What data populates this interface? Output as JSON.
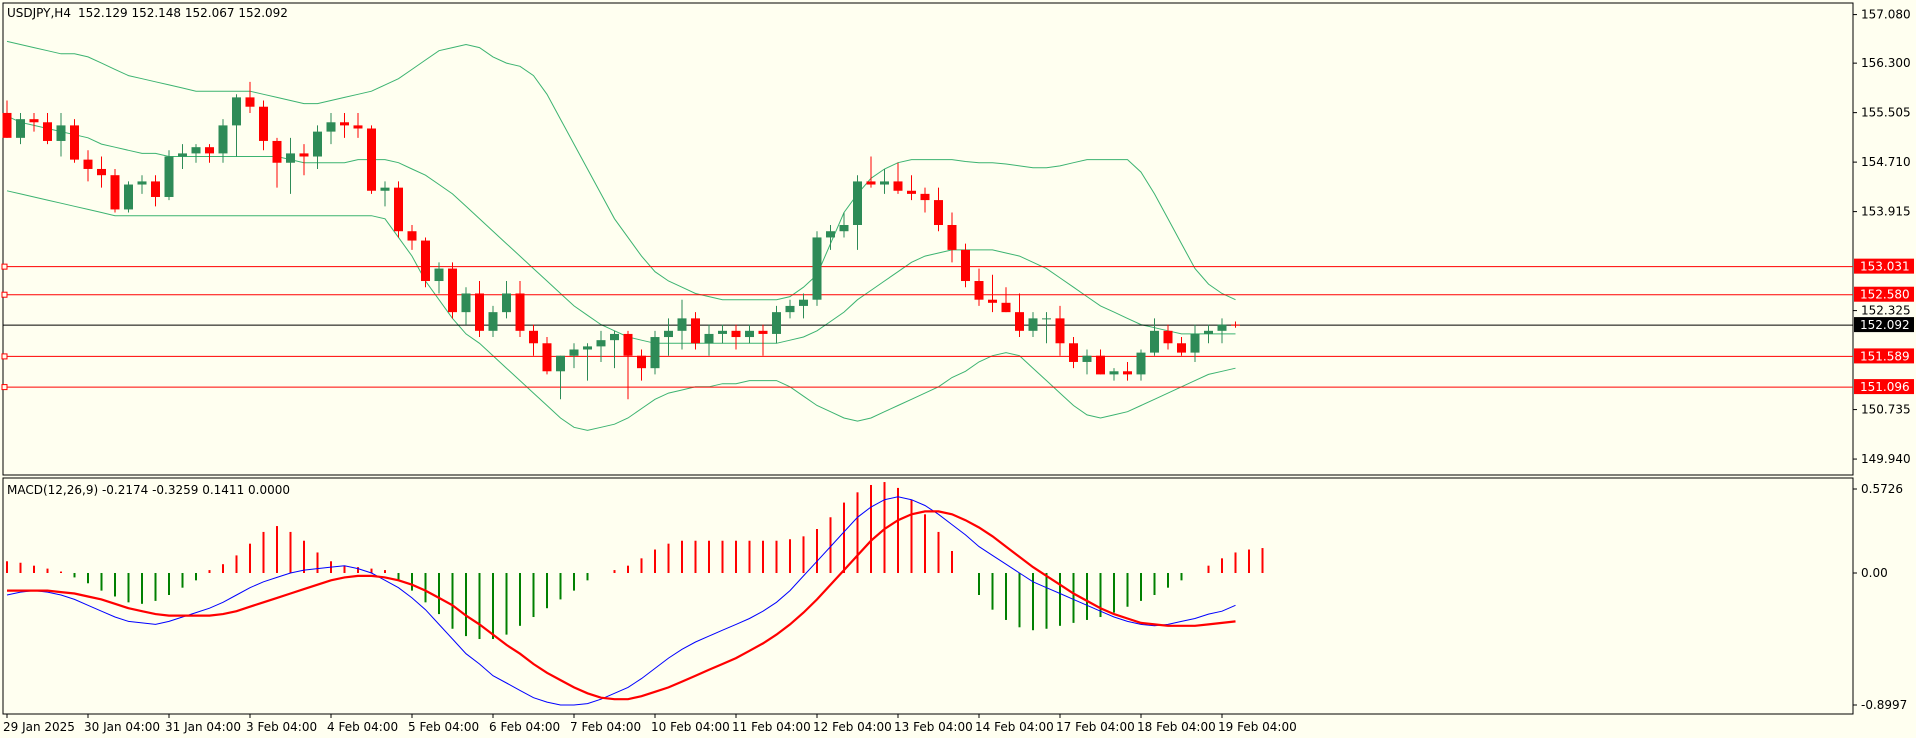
{
  "header": {
    "symbol": "USDJPY,H4",
    "ohlc": "152.129 152.148 152.067 152.092"
  },
  "macd_header": {
    "label": "MACD(12,26,9) -0.2174 -0.3259 0.1411 0.0000"
  },
  "colors": {
    "background": "#fffff0",
    "bull_candle": "#2e8b57",
    "bear_candle": "#ff0000",
    "bollinger": "#3cb371",
    "level_line": "#ff0000",
    "current_price_line": "#000000",
    "macd_line": "#0000ff",
    "signal_line": "#ff0000",
    "hist_positive": "#ff0000",
    "hist_negative": "#008000"
  },
  "chart_data": [
    {
      "type": "candlestick",
      "title": "USDJPY,H4",
      "ylim": [
        149.7,
        157.25
      ],
      "y_ticks": [
        "157.080",
        "156.300",
        "155.505",
        "154.710",
        "153.915",
        "152.325",
        "150.735",
        "149.940"
      ],
      "y_ticks_values": [
        157.08,
        156.3,
        155.505,
        154.71,
        153.915,
        152.325,
        150.735,
        149.94
      ],
      "x_tick_labels": [
        "29 Jan 2025",
        "30 Jan 04:00",
        "31 Jan 04:00",
        "3 Feb 04:00",
        "4 Feb 04:00",
        "5 Feb 04:00",
        "6 Feb 04:00",
        "7 Feb 04:00",
        "10 Feb 04:00",
        "11 Feb 04:00",
        "12 Feb 04:00",
        "13 Feb 04:00",
        "14 Feb 04:00",
        "17 Feb 04:00",
        "18 Feb 04:00",
        "19 Feb 04:00"
      ],
      "x_tick_bar_index": [
        0,
        6,
        12,
        18,
        24,
        30,
        36,
        42,
        48,
        54,
        60,
        66,
        72,
        78,
        84,
        90
      ],
      "price_levels": [
        {
          "label": "153.031",
          "value": 153.031
        },
        {
          "label": "152.580",
          "value": 152.58
        },
        {
          "label": "151.589",
          "value": 151.589
        },
        {
          "label": "151.096",
          "value": 151.096
        }
      ],
      "current_price": {
        "label": "152.092",
        "value": 152.092
      },
      "candles": [
        [
          155.5,
          155.7,
          155.1,
          155.1
        ],
        [
          155.1,
          155.5,
          155.0,
          155.4
        ],
        [
          155.4,
          155.5,
          155.2,
          155.35
        ],
        [
          155.35,
          155.5,
          155.0,
          155.05
        ],
        [
          155.05,
          155.5,
          154.8,
          155.3
        ],
        [
          155.3,
          155.4,
          154.7,
          154.75
        ],
        [
          154.75,
          154.9,
          154.4,
          154.6
        ],
        [
          154.6,
          154.8,
          154.3,
          154.5
        ],
        [
          154.5,
          154.6,
          153.9,
          153.95
        ],
        [
          153.95,
          154.4,
          153.9,
          154.35
        ],
        [
          154.35,
          154.5,
          154.2,
          154.4
        ],
        [
          154.4,
          154.5,
          154.0,
          154.15
        ],
        [
          154.15,
          154.9,
          154.1,
          154.8
        ],
        [
          154.8,
          155.0,
          154.6,
          154.85
        ],
        [
          154.85,
          155.0,
          154.7,
          154.95
        ],
        [
          154.95,
          155.0,
          154.7,
          154.85
        ],
        [
          154.85,
          155.4,
          154.7,
          155.3
        ],
        [
          155.3,
          155.8,
          154.8,
          155.75
        ],
        [
          155.75,
          156.0,
          155.5,
          155.6
        ],
        [
          155.6,
          155.7,
          154.9,
          155.05
        ],
        [
          155.05,
          155.1,
          154.3,
          154.7
        ],
        [
          154.7,
          155.1,
          154.2,
          154.85
        ],
        [
          154.85,
          155.0,
          154.5,
          154.8
        ],
        [
          154.8,
          155.3,
          154.6,
          155.2
        ],
        [
          155.2,
          155.5,
          155.0,
          155.35
        ],
        [
          155.35,
          155.5,
          155.1,
          155.3
        ],
        [
          155.3,
          155.5,
          155.1,
          155.25
        ],
        [
          155.25,
          155.3,
          154.2,
          154.25
        ],
        [
          154.25,
          154.4,
          154.0,
          154.3
        ],
        [
          154.3,
          154.4,
          153.5,
          153.6
        ],
        [
          153.6,
          153.7,
          153.3,
          153.45
        ],
        [
          153.45,
          153.5,
          152.7,
          152.8
        ],
        [
          152.8,
          153.1,
          152.6,
          153.0
        ],
        [
          153.0,
          153.1,
          152.2,
          152.3
        ],
        [
          152.3,
          152.7,
          152.1,
          152.6
        ],
        [
          152.6,
          152.8,
          151.9,
          152.0
        ],
        [
          152.0,
          152.4,
          151.9,
          152.3
        ],
        [
          152.3,
          152.8,
          152.2,
          152.6
        ],
        [
          152.6,
          152.8,
          151.9,
          152.0
        ],
        [
          152.0,
          152.1,
          151.6,
          151.8
        ],
        [
          151.8,
          151.9,
          151.3,
          151.35
        ],
        [
          151.35,
          151.6,
          150.9,
          151.6
        ],
        [
          151.6,
          151.8,
          151.4,
          151.7
        ],
        [
          151.7,
          151.8,
          151.2,
          151.75
        ],
        [
          151.75,
          152.0,
          151.5,
          151.85
        ],
        [
          151.85,
          152.0,
          151.4,
          151.95
        ],
        [
          151.95,
          152.0,
          150.9,
          151.6
        ],
        [
          151.6,
          151.7,
          151.2,
          151.4
        ],
        [
          151.4,
          152.0,
          151.3,
          151.9
        ],
        [
          151.9,
          152.2,
          151.6,
          152.0
        ],
        [
          152.0,
          152.5,
          151.7,
          152.2
        ],
        [
          152.2,
          152.3,
          151.7,
          151.8
        ],
        [
          151.8,
          152.1,
          151.6,
          151.95
        ],
        [
          151.95,
          152.1,
          151.8,
          152.0
        ],
        [
          152.0,
          152.1,
          151.7,
          151.9
        ],
        [
          151.9,
          152.1,
          151.8,
          152.0
        ],
        [
          152.0,
          152.1,
          151.6,
          151.95
        ],
        [
          151.95,
          152.4,
          151.8,
          152.3
        ],
        [
          152.3,
          152.5,
          152.2,
          152.4
        ],
        [
          152.4,
          152.6,
          152.2,
          152.5
        ],
        [
          152.5,
          153.6,
          152.4,
          153.5
        ],
        [
          153.5,
          153.7,
          153.3,
          153.6
        ],
        [
          153.6,
          153.9,
          153.5,
          153.7
        ],
        [
          153.7,
          154.5,
          153.3,
          154.4
        ],
        [
          154.4,
          154.8,
          154.3,
          154.35
        ],
        [
          154.35,
          154.6,
          154.2,
          154.4
        ],
        [
          154.4,
          154.7,
          154.2,
          154.25
        ],
        [
          154.25,
          154.5,
          154.1,
          154.2
        ],
        [
          154.2,
          154.3,
          153.9,
          154.1
        ],
        [
          154.1,
          154.3,
          153.6,
          153.7
        ],
        [
          153.7,
          153.9,
          153.1,
          153.3
        ],
        [
          153.3,
          153.4,
          152.7,
          152.8
        ],
        [
          152.8,
          153.0,
          152.4,
          152.5
        ],
        [
          152.5,
          152.9,
          152.3,
          152.45
        ],
        [
          152.45,
          152.7,
          152.3,
          152.3
        ],
        [
          152.3,
          152.6,
          151.9,
          152.0
        ],
        [
          152.0,
          152.3,
          151.9,
          152.2
        ],
        [
          152.2,
          152.3,
          151.8,
          152.2
        ],
        [
          152.2,
          152.4,
          151.6,
          151.8
        ],
        [
          151.8,
          151.9,
          151.4,
          151.5
        ],
        [
          151.5,
          151.7,
          151.3,
          151.6
        ],
        [
          151.6,
          151.7,
          151.3,
          151.3
        ],
        [
          151.3,
          151.4,
          151.2,
          151.35
        ],
        [
          151.35,
          151.5,
          151.2,
          151.3
        ],
        [
          151.3,
          151.7,
          151.2,
          151.65
        ],
        [
          151.65,
          152.2,
          151.6,
          152.0
        ],
        [
          152.0,
          152.1,
          151.7,
          151.8
        ],
        [
          151.8,
          151.9,
          151.6,
          151.65
        ],
        [
          151.65,
          152.1,
          151.5,
          151.95
        ],
        [
          151.95,
          152.1,
          151.8,
          152.0
        ],
        [
          152.0,
          152.2,
          151.8,
          152.1
        ],
        [
          152.1,
          152.15,
          152.05,
          152.09
        ]
      ],
      "bollinger_upper": [
        156.65,
        156.6,
        156.55,
        156.5,
        156.45,
        156.45,
        156.4,
        156.3,
        156.2,
        156.1,
        156.05,
        156.0,
        155.95,
        155.9,
        155.85,
        155.85,
        155.85,
        155.85,
        155.85,
        155.8,
        155.75,
        155.7,
        155.65,
        155.65,
        155.7,
        155.75,
        155.8,
        155.85,
        155.95,
        156.05,
        156.2,
        156.35,
        156.5,
        156.55,
        156.6,
        156.55,
        156.4,
        156.3,
        156.25,
        156.1,
        155.8,
        155.4,
        155.0,
        154.6,
        154.2,
        153.8,
        153.5,
        153.2,
        152.95,
        152.8,
        152.7,
        152.6,
        152.55,
        152.5,
        152.5,
        152.5,
        152.5,
        152.5,
        152.55,
        152.7,
        152.9,
        153.4,
        153.9,
        154.2,
        154.45,
        154.6,
        154.7,
        154.75,
        154.75,
        154.75,
        154.75,
        154.72,
        154.7,
        154.7,
        154.68,
        154.65,
        154.62,
        154.62,
        154.65,
        154.7,
        154.75,
        154.75,
        154.75,
        154.75,
        154.55,
        154.2,
        153.8,
        153.4,
        153.0,
        152.75,
        152.6,
        152.5
      ],
      "bollinger_middle": [
        155.45,
        155.35,
        155.3,
        155.25,
        155.2,
        155.15,
        155.1,
        155.0,
        154.95,
        154.9,
        154.85,
        154.85,
        154.8,
        154.8,
        154.8,
        154.8,
        154.8,
        154.8,
        154.8,
        154.8,
        154.8,
        154.75,
        154.7,
        154.7,
        154.7,
        154.7,
        154.75,
        154.75,
        154.75,
        154.7,
        154.6,
        154.5,
        154.35,
        154.2,
        154.0,
        153.8,
        153.6,
        153.4,
        153.2,
        153.0,
        152.8,
        152.6,
        152.4,
        152.25,
        152.1,
        152.0,
        151.9,
        151.85,
        151.8,
        151.8,
        151.8,
        151.8,
        151.8,
        151.8,
        151.8,
        151.8,
        151.8,
        151.8,
        151.85,
        151.9,
        152.0,
        152.15,
        152.3,
        152.5,
        152.65,
        152.8,
        152.95,
        153.1,
        153.2,
        153.25,
        153.3,
        153.3,
        153.3,
        153.3,
        153.25,
        153.2,
        153.1,
        153.0,
        152.85,
        152.7,
        152.55,
        152.4,
        152.3,
        152.2,
        152.1,
        152.05,
        152.0,
        151.95,
        151.95,
        151.95,
        151.95,
        151.95
      ],
      "bollinger_lower": [
        154.25,
        154.2,
        154.15,
        154.1,
        154.05,
        154.0,
        153.95,
        153.9,
        153.85,
        153.85,
        153.85,
        153.85,
        153.85,
        153.85,
        153.85,
        153.85,
        153.85,
        153.85,
        153.85,
        153.85,
        153.85,
        153.85,
        153.85,
        153.85,
        153.85,
        153.85,
        153.85,
        153.85,
        153.8,
        153.5,
        153.2,
        152.8,
        152.5,
        152.2,
        151.95,
        151.8,
        151.6,
        151.4,
        151.2,
        151.0,
        150.8,
        150.6,
        150.45,
        150.4,
        150.45,
        150.5,
        150.6,
        150.75,
        150.9,
        151.0,
        151.05,
        151.1,
        151.1,
        151.15,
        151.15,
        151.2,
        151.2,
        151.2,
        151.1,
        150.95,
        150.8,
        150.7,
        150.6,
        150.55,
        150.6,
        150.7,
        150.8,
        150.9,
        151.0,
        151.1,
        151.25,
        151.35,
        151.5,
        151.6,
        151.65,
        151.6,
        151.4,
        151.2,
        151.0,
        150.8,
        150.65,
        150.6,
        150.65,
        150.7,
        150.8,
        150.9,
        151.0,
        151.1,
        151.2,
        151.3,
        151.35,
        151.4
      ]
    },
    {
      "type": "histogram_line",
      "title": "MACD(12,26,9)",
      "ylim": [
        -0.8997,
        0.5726
      ],
      "y_ticks": [
        "0.5726",
        "0.00",
        "-0.8997"
      ],
      "y_ticks_values": [
        0.5726,
        0.0,
        -0.8997
      ],
      "histogram": [
        0.08,
        0.07,
        0.05,
        0.03,
        0.01,
        -0.03,
        -0.07,
        -0.12,
        -0.16,
        -0.2,
        -0.21,
        -0.19,
        -0.15,
        -0.1,
        -0.05,
        0.02,
        0.06,
        0.12,
        0.2,
        0.28,
        0.32,
        0.28,
        0.22,
        0.14,
        0.08,
        0.05,
        0.04,
        0.03,
        0.02,
        -0.05,
        -0.12,
        -0.2,
        -0.28,
        -0.38,
        -0.43,
        -0.45,
        -0.45,
        -0.42,
        -0.36,
        -0.3,
        -0.24,
        -0.18,
        -0.12,
        -0.05,
        0.0,
        0.02,
        0.05,
        0.1,
        0.16,
        0.2,
        0.22,
        0.22,
        0.22,
        0.22,
        0.22,
        0.22,
        0.22,
        0.22,
        0.23,
        0.25,
        0.3,
        0.38,
        0.48,
        0.55,
        0.6,
        0.62,
        0.58,
        0.5,
        0.4,
        0.28,
        0.15,
        0.0,
        -0.15,
        -0.25,
        -0.32,
        -0.37,
        -0.39,
        -0.38,
        -0.36,
        -0.34,
        -0.32,
        -0.3,
        -0.27,
        -0.23,
        -0.19,
        -0.15,
        -0.1,
        -0.05,
        0.0,
        0.05,
        0.1,
        0.14,
        0.16,
        0.17
      ],
      "macd": [
        -0.15,
        -0.13,
        -0.12,
        -0.13,
        -0.15,
        -0.18,
        -0.22,
        -0.26,
        -0.3,
        -0.33,
        -0.34,
        -0.35,
        -0.33,
        -0.3,
        -0.27,
        -0.24,
        -0.2,
        -0.15,
        -0.1,
        -0.06,
        -0.03,
        0.0,
        0.02,
        0.03,
        0.04,
        0.05,
        0.03,
        0.0,
        -0.05,
        -0.1,
        -0.17,
        -0.25,
        -0.35,
        -0.45,
        -0.55,
        -0.62,
        -0.7,
        -0.75,
        -0.8,
        -0.85,
        -0.88,
        -0.9,
        -0.9,
        -0.89,
        -0.86,
        -0.82,
        -0.78,
        -0.72,
        -0.65,
        -0.58,
        -0.52,
        -0.47,
        -0.43,
        -0.39,
        -0.35,
        -0.31,
        -0.26,
        -0.2,
        -0.12,
        -0.02,
        0.08,
        0.18,
        0.28,
        0.38,
        0.45,
        0.5,
        0.52,
        0.5,
        0.46,
        0.4,
        0.33,
        0.26,
        0.18,
        0.12,
        0.06,
        0.0,
        -0.06,
        -0.1,
        -0.14,
        -0.18,
        -0.22,
        -0.26,
        -0.3,
        -0.33,
        -0.35,
        -0.36,
        -0.35,
        -0.33,
        -0.31,
        -0.28,
        -0.26,
        -0.22
      ],
      "signal": [
        -0.12,
        -0.12,
        -0.12,
        -0.12,
        -0.13,
        -0.14,
        -0.16,
        -0.18,
        -0.21,
        -0.24,
        -0.26,
        -0.28,
        -0.29,
        -0.29,
        -0.29,
        -0.29,
        -0.28,
        -0.26,
        -0.23,
        -0.2,
        -0.17,
        -0.14,
        -0.11,
        -0.08,
        -0.05,
        -0.03,
        -0.02,
        -0.02,
        -0.03,
        -0.05,
        -0.08,
        -0.12,
        -0.17,
        -0.22,
        -0.29,
        -0.35,
        -0.42,
        -0.49,
        -0.55,
        -0.62,
        -0.68,
        -0.73,
        -0.78,
        -0.82,
        -0.85,
        -0.86,
        -0.86,
        -0.84,
        -0.81,
        -0.78,
        -0.74,
        -0.7,
        -0.66,
        -0.62,
        -0.58,
        -0.53,
        -0.48,
        -0.42,
        -0.35,
        -0.27,
        -0.18,
        -0.08,
        0.02,
        0.12,
        0.22,
        0.3,
        0.36,
        0.4,
        0.42,
        0.42,
        0.4,
        0.36,
        0.31,
        0.25,
        0.18,
        0.11,
        0.04,
        -0.02,
        -0.08,
        -0.14,
        -0.19,
        -0.24,
        -0.28,
        -0.31,
        -0.34,
        -0.35,
        -0.36,
        -0.36,
        -0.36,
        -0.35,
        -0.34,
        -0.33
      ]
    }
  ]
}
